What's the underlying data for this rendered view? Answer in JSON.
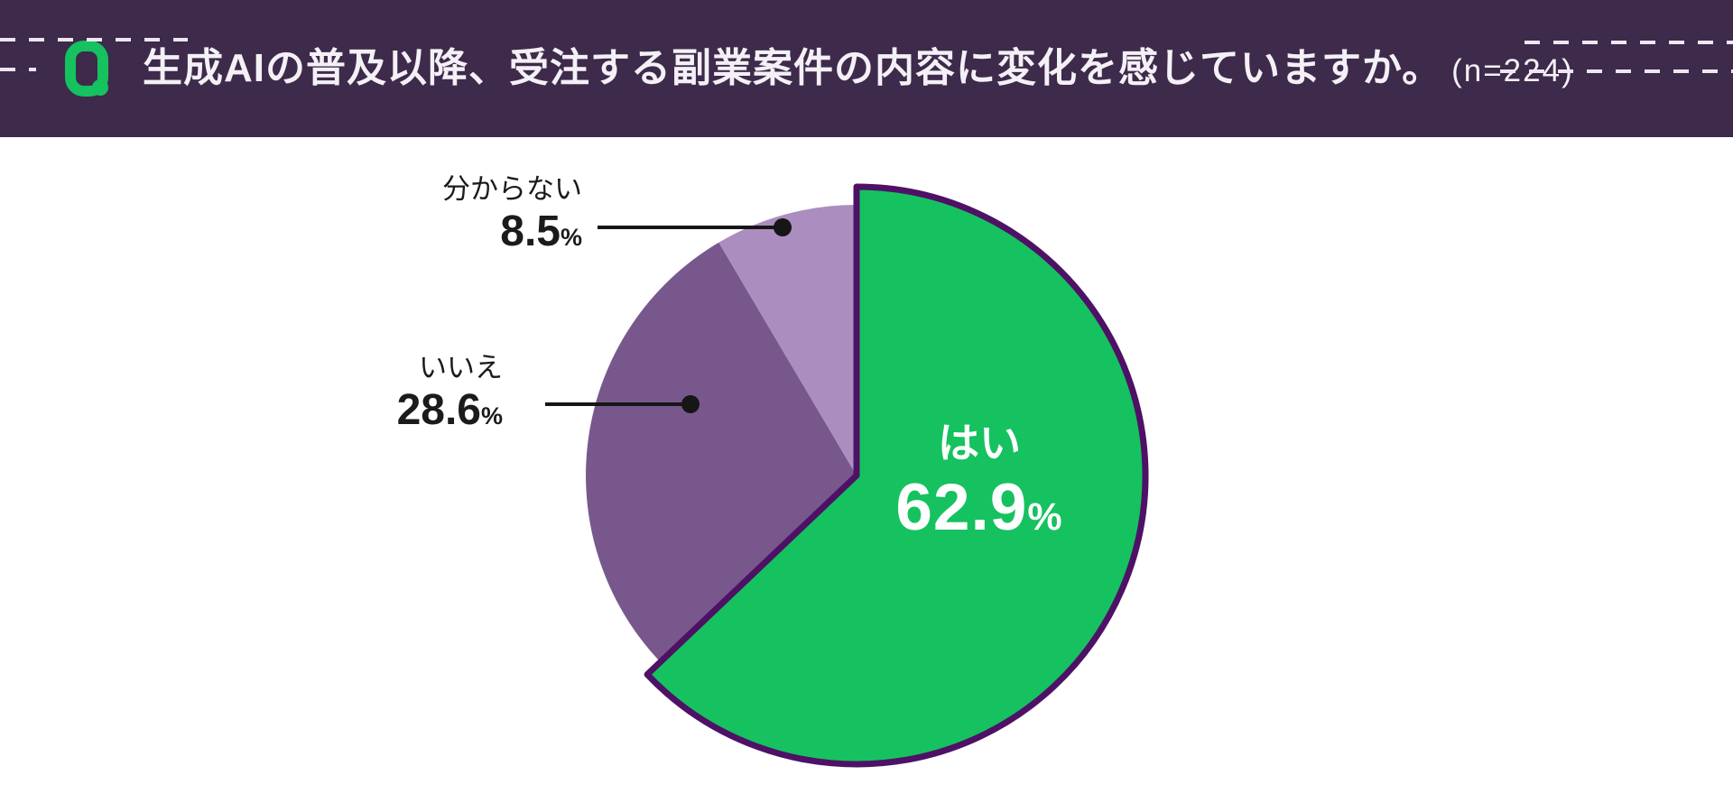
{
  "header": {
    "title": "生成AIの普及以降、受注する副業案件の内容に変化を感じていますか。",
    "sample_size": "(n=224)",
    "background_color": "#3E2A4B",
    "logo_icon": "q-logo",
    "logo_color": "#15C25F"
  },
  "chart_data": {
    "type": "pie",
    "title": "生成AIの普及以降、受注する副業案件の内容に変化を感じていますか。",
    "n": 224,
    "unit": "%",
    "start_angle_deg": 0,
    "direction": "clockwise",
    "legend": "none",
    "slices": [
      {
        "key": "yes",
        "label": "はい",
        "value": 62.9,
        "color": "#15C25F",
        "emphasized": true,
        "label_placement": "inside"
      },
      {
        "key": "no",
        "label": "いいえ",
        "value": 28.6,
        "color": "#78588C",
        "emphasized": false,
        "label_placement": "callout-left"
      },
      {
        "key": "unknown",
        "label": "分からない",
        "value": 8.5,
        "color": "#AB8EBF",
        "emphasized": false,
        "label_placement": "callout-left"
      }
    ],
    "emphasis_outline_color": "#4E1166",
    "callout_color": "#161616"
  },
  "pie_labels": {
    "yes": {
      "name": "はい",
      "value": "62.9",
      "unit": "%"
    },
    "no": {
      "name": "いいえ",
      "value": "28.6",
      "unit": "%"
    },
    "unknown": {
      "name": "分からない",
      "value": "8.5",
      "unit": "%"
    }
  }
}
